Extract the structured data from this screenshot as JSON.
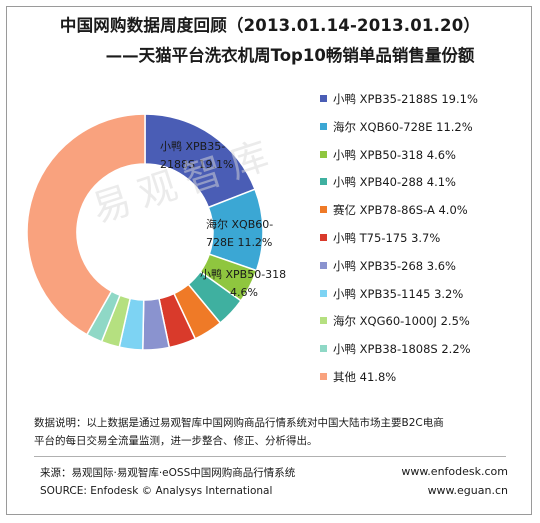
{
  "title_line1": "中国网购数据周度回顾（2013.01.14-2013.01.20）",
  "title_line2": "——天猫平台洗衣机周Top10畅销单品销售量份额",
  "watermark": "易观智库",
  "chart_data": {
    "type": "pie",
    "donut": true,
    "categories": [
      "小鸭 XPB35-2188S",
      "海尔 XQB60-728E",
      "小鸭 XPB50-318",
      "小鸭 XPB40-288",
      "赛亿 XPB78-86S-A",
      "小鸭 T75-175",
      "小鸭 XPB35-268",
      "小鸭 XPB35-1145",
      "海尔 XQG60-1000J",
      "小鸭 XPB38-1808S",
      "其他"
    ],
    "values": [
      19.1,
      11.2,
      4.6,
      4.1,
      4.0,
      3.7,
      3.6,
      3.2,
      2.5,
      2.2,
      41.8
    ],
    "value_labels": [
      "19.1%",
      "11.2%",
      "4.6%",
      "4.1%",
      "4.0%",
      "3.7%",
      "3.6%",
      "3.2%",
      "2.5%",
      "2.2%",
      "41.8%"
    ],
    "colors": [
      "#4a5db5",
      "#3ba7d4",
      "#8fc63f",
      "#3fb0a0",
      "#ef7a27",
      "#d93a2b",
      "#8a93cf",
      "#7dd3f3",
      "#b5e080",
      "#8fd8c6",
      "#f9a27e"
    ],
    "slice_labels": [
      {
        "line1": "小鸭 XPB35-",
        "line2": "2188S  19.1%"
      },
      {
        "line1": "海尔 XQB60-",
        "line2": "728E  11.2%"
      },
      {
        "line1": "小鸭 XPB50-318",
        "line2": "4.6%"
      }
    ],
    "legend_position": "right"
  },
  "note": {
    "line1": "数据说明：以上数据是通过易观智库中国网购商品行情系统对中国大陆市场主要B2C电商",
    "line2": "平台的每日交易全流量监测，进一步整合、修正、分析得出。"
  },
  "footer": {
    "source_cn": "来源：易观国际·易观智库·eOSS中国网购商品行情系统",
    "source_en": "SOURCE: Enfodesk © Analysys International",
    "url1": "www.enfodesk.com",
    "url2": "www.eguan.cn"
  }
}
